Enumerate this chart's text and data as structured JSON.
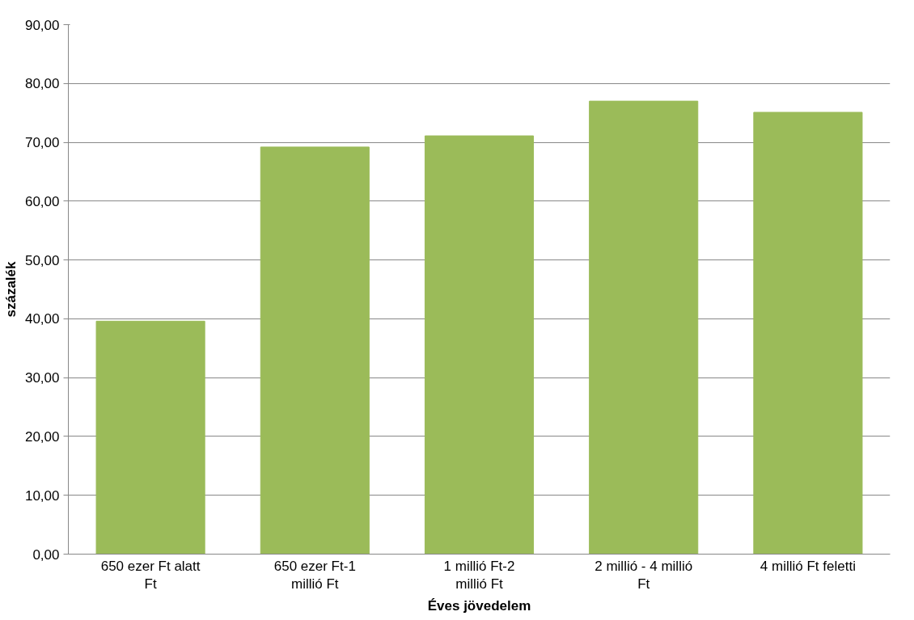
{
  "chart_data": {
    "type": "bar",
    "xlabel": "Éves jövedelem",
    "ylabel": "százalék",
    "categories": [
      "650 ezer Ft alatt Ft",
      "650 ezer Ft-1 millió Ft",
      "1 millió Ft-2 millió Ft",
      "2 millió - 4 millió Ft",
      "4 millió Ft feletti"
    ],
    "values": [
      39.6,
      69.2,
      71.1,
      77.0,
      75.1
    ],
    "color": "#9bbb59",
    "ylim": [
      0,
      90
    ],
    "yticks": [
      {
        "value": 0,
        "label": "0,00"
      },
      {
        "value": 10,
        "label": "10,00"
      },
      {
        "value": 20,
        "label": "20,00"
      },
      {
        "value": 30,
        "label": "30,00"
      },
      {
        "value": 40,
        "label": "40,00"
      },
      {
        "value": 50,
        "label": "50,00"
      },
      {
        "value": 60,
        "label": "60,00"
      },
      {
        "value": 70,
        "label": "70,00"
      },
      {
        "value": 80,
        "label": "80,00"
      },
      {
        "value": 90,
        "label": "90,00"
      }
    ],
    "grid": "y"
  }
}
